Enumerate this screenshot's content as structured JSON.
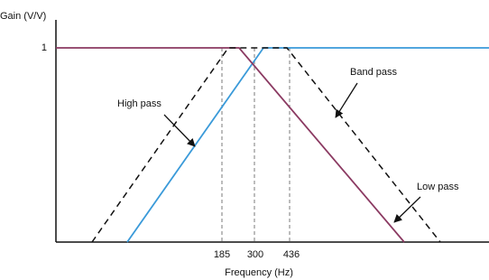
{
  "axes": {
    "y_label": "Gain (V/V)",
    "y_tick": 1,
    "x_label": "Frequency (Hz)",
    "x_ticks": [
      185,
      300,
      436
    ]
  },
  "annotations": [
    "High pass",
    "Band pass",
    "Low pass"
  ]
}
